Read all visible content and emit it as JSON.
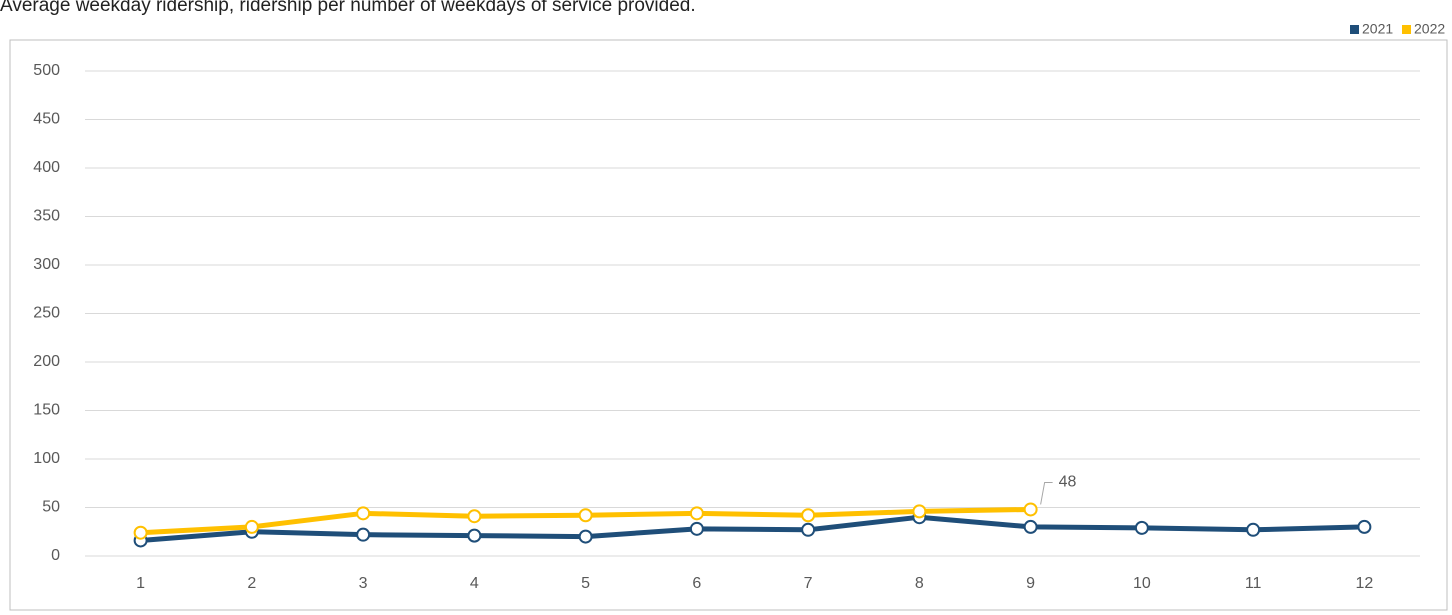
{
  "chart_data": {
    "type": "line",
    "title": "Average weekday ridership, ridership per number of weekdays of service provided.",
    "categories": [
      "1",
      "2",
      "3",
      "4",
      "5",
      "6",
      "7",
      "8",
      "9",
      "10",
      "11",
      "12"
    ],
    "series": [
      {
        "name": "2021",
        "color": "#1f4e79",
        "values": [
          16,
          25,
          22,
          21,
          20,
          28,
          27,
          40,
          30,
          29,
          27,
          30
        ]
      },
      {
        "name": "2022",
        "color": "#ffc000",
        "values": [
          24,
          30,
          44,
          41,
          42,
          44,
          42,
          46,
          48,
          null,
          null,
          null
        ]
      }
    ],
    "ylim": [
      0,
      500
    ],
    "yticks": [
      0,
      50,
      100,
      150,
      200,
      250,
      300,
      350,
      400,
      450,
      500
    ],
    "grid": true,
    "legend": "top-right"
  }
}
